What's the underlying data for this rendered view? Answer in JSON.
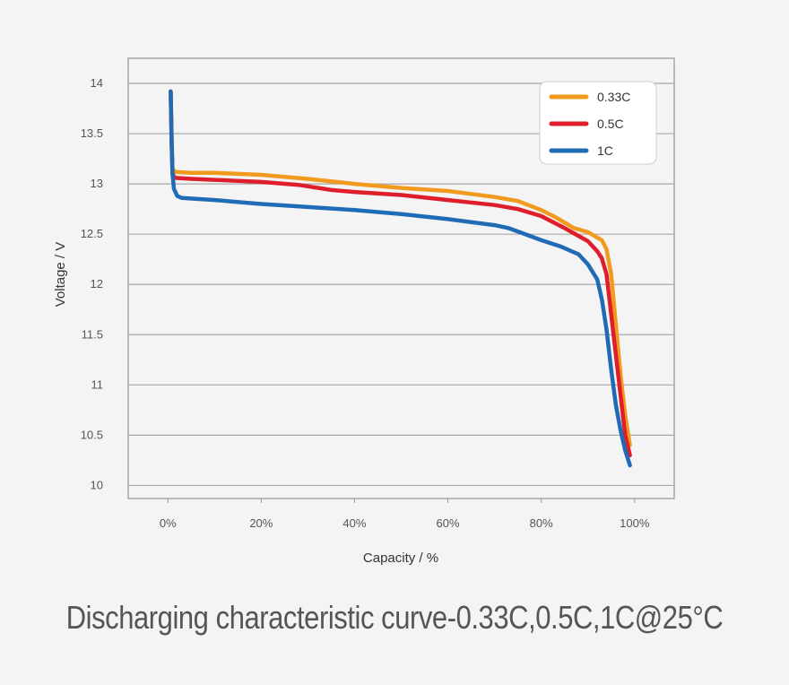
{
  "caption": "Discharging characteristic curve-0.33C,0.5C,1C@25°C",
  "chart_data": {
    "type": "line",
    "title": "",
    "xlabel": "Capacity / %",
    "ylabel": "Voltage / V",
    "xlim": [
      -8.5,
      108.5
    ],
    "ylim": [
      9.87,
      14.25
    ],
    "xticks": [
      0,
      20,
      40,
      60,
      80,
      100
    ],
    "xtick_labels": [
      "0%",
      "20%",
      "40%",
      "60%",
      "80%",
      "100%"
    ],
    "yticks": [
      10,
      10.5,
      11,
      11.5,
      12,
      12.5,
      13,
      13.5,
      14
    ],
    "ytick_labels": [
      "10",
      "10.5",
      "11",
      "11.5",
      "12",
      "12.5",
      "13",
      "13.5",
      "14"
    ],
    "grid": "horizontal",
    "legend_position": "top-right",
    "series": [
      {
        "name": "0.33C",
        "color": "#f29a1e",
        "points": [
          [
            0.6,
            13.92
          ],
          [
            0.8,
            13.5
          ],
          [
            1.0,
            13.15
          ],
          [
            1.5,
            13.12
          ],
          [
            5,
            13.11
          ],
          [
            10,
            13.11
          ],
          [
            20,
            13.09
          ],
          [
            30,
            13.05
          ],
          [
            40,
            13.0
          ],
          [
            50,
            12.96
          ],
          [
            60,
            12.93
          ],
          [
            70,
            12.87
          ],
          [
            75,
            12.83
          ],
          [
            80,
            12.74
          ],
          [
            83,
            12.67
          ],
          [
            87,
            12.56
          ],
          [
            90,
            12.52
          ],
          [
            93,
            12.44
          ],
          [
            94,
            12.35
          ],
          [
            95,
            12.1
          ],
          [
            96,
            11.6
          ],
          [
            97,
            11.1
          ],
          [
            98,
            10.7
          ],
          [
            99,
            10.4
          ]
        ]
      },
      {
        "name": "0.5C",
        "color": "#de1e2a",
        "points": [
          [
            0.6,
            13.92
          ],
          [
            0.8,
            13.4
          ],
          [
            1.0,
            13.1
          ],
          [
            1.5,
            13.06
          ],
          [
            5,
            13.05
          ],
          [
            10,
            13.04
          ],
          [
            20,
            13.02
          ],
          [
            28,
            12.99
          ],
          [
            35,
            12.94
          ],
          [
            40,
            12.92
          ],
          [
            50,
            12.89
          ],
          [
            60,
            12.84
          ],
          [
            70,
            12.79
          ],
          [
            75,
            12.75
          ],
          [
            80,
            12.68
          ],
          [
            85,
            12.56
          ],
          [
            90,
            12.43
          ],
          [
            92,
            12.33
          ],
          [
            93,
            12.26
          ],
          [
            94,
            12.1
          ],
          [
            95,
            11.7
          ],
          [
            96,
            11.3
          ],
          [
            97,
            10.9
          ],
          [
            98,
            10.5
          ],
          [
            99,
            10.3
          ]
        ]
      },
      {
        "name": "1C",
        "color": "#1f6bb5",
        "points": [
          [
            0.6,
            13.92
          ],
          [
            0.8,
            13.45
          ],
          [
            1.0,
            13.1
          ],
          [
            1.3,
            12.95
          ],
          [
            2,
            12.88
          ],
          [
            3,
            12.86
          ],
          [
            10,
            12.84
          ],
          [
            20,
            12.8
          ],
          [
            30,
            12.77
          ],
          [
            40,
            12.74
          ],
          [
            50,
            12.7
          ],
          [
            60,
            12.65
          ],
          [
            70,
            12.59
          ],
          [
            73,
            12.56
          ],
          [
            76,
            12.51
          ],
          [
            80,
            12.44
          ],
          [
            84,
            12.38
          ],
          [
            88,
            12.3
          ],
          [
            90,
            12.2
          ],
          [
            92,
            12.05
          ],
          [
            93,
            11.85
          ],
          [
            94,
            11.55
          ],
          [
            95,
            11.15
          ],
          [
            96,
            10.8
          ],
          [
            97,
            10.55
          ],
          [
            98,
            10.35
          ],
          [
            99,
            10.2
          ]
        ]
      }
    ]
  }
}
